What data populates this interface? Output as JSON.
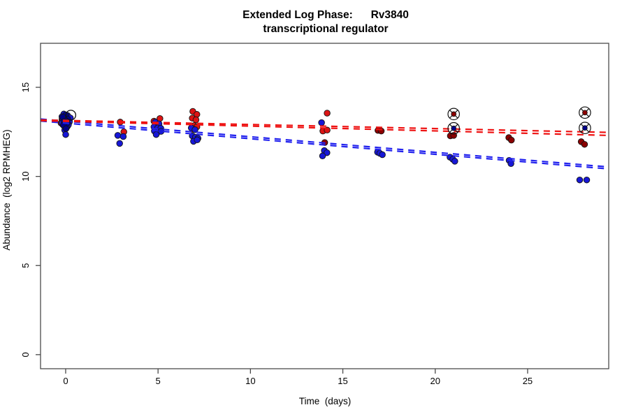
{
  "title": {
    "line1": "Extended Log Phase:      Rv3840",
    "line2": "transcriptional regulator"
  },
  "chart_data": {
    "type": "scatter",
    "title": "Extended Log Phase: Rv3840 transcriptional regulator",
    "xlabel": "Time  (days)",
    "ylabel": "Abundance  (log2 RPMHEG)",
    "xlim": [
      -1.36,
      29.39
    ],
    "ylim": [
      -0.79,
      17.47
    ],
    "x_ticks": [
      0,
      5,
      10,
      15,
      20,
      25
    ],
    "y_ticks": [
      0,
      5,
      10,
      15
    ],
    "grid": false,
    "legend": "none",
    "background": "#FFFFFF",
    "axis_color": "#4a4a4a",
    "text_color": "#000000",
    "point_series": [
      {
        "name": "red-points",
        "color": "#DC1414",
        "points": [
          [
            -0.2,
            13.2
          ],
          [
            0.2,
            13.1
          ],
          [
            -0.25,
            13.0
          ],
          [
            -0.15,
            12.9
          ],
          [
            0.1,
            12.82
          ],
          [
            2.95,
            13.05
          ],
          [
            3.15,
            12.5
          ],
          [
            5.1,
            13.25
          ],
          [
            4.78,
            13.1
          ],
          [
            6.88,
            13.65
          ],
          [
            7.1,
            13.48
          ],
          [
            6.85,
            13.27
          ],
          [
            7.05,
            13.18
          ],
          [
            6.95,
            12.85
          ],
          [
            7.1,
            12.78
          ],
          [
            6.88,
            12.65
          ],
          [
            14.15,
            13.55
          ],
          [
            13.92,
            12.55
          ],
          [
            14.15,
            12.6
          ]
        ]
      },
      {
        "name": "darkred-points",
        "color": "#8B0000",
        "points": [
          [
            14.02,
            11.9
          ],
          [
            16.9,
            12.58
          ],
          [
            17.08,
            12.55
          ],
          [
            20.82,
            12.28
          ],
          [
            21.0,
            12.3
          ],
          [
            23.98,
            12.18
          ],
          [
            24.12,
            12.04
          ],
          [
            27.9,
            11.95
          ],
          [
            28.08,
            11.8
          ]
        ]
      },
      {
        "name": "blue-points",
        "color": "#1717D6",
        "points": [
          [
            -0.1,
            13.5
          ],
          [
            0.1,
            13.42
          ],
          [
            -0.2,
            13.35
          ],
          [
            0.05,
            13.3
          ],
          [
            0.25,
            13.28
          ],
          [
            -0.15,
            13.2
          ],
          [
            0.1,
            13.15
          ],
          [
            -0.05,
            13.1
          ],
          [
            0.2,
            13.05
          ],
          [
            -0.2,
            13.0
          ],
          [
            0.0,
            12.95
          ],
          [
            0.15,
            12.9
          ],
          [
            -0.1,
            12.85
          ],
          [
            0.05,
            12.75
          ],
          [
            -0.05,
            12.6
          ],
          [
            0.0,
            12.35
          ],
          [
            2.82,
            12.3
          ],
          [
            3.12,
            12.24
          ],
          [
            2.92,
            11.85
          ],
          [
            4.85,
            13.05
          ],
          [
            5.05,
            12.95
          ],
          [
            4.78,
            12.78
          ],
          [
            4.98,
            12.72
          ],
          [
            5.15,
            12.7
          ],
          [
            4.8,
            12.55
          ],
          [
            5.0,
            12.5
          ],
          [
            5.16,
            12.53
          ],
          [
            4.9,
            12.35
          ],
          [
            6.8,
            12.72
          ],
          [
            7.0,
            12.62
          ],
          [
            6.85,
            12.28
          ],
          [
            7.02,
            12.2
          ],
          [
            7.16,
            12.14
          ],
          [
            6.92,
            11.97
          ],
          [
            7.12,
            12.05
          ],
          [
            13.85,
            13.02
          ],
          [
            14.0,
            11.45
          ],
          [
            14.14,
            11.33
          ],
          [
            13.9,
            11.15
          ],
          [
            16.88,
            11.36
          ],
          [
            17.0,
            11.3
          ],
          [
            17.14,
            11.22
          ],
          [
            20.8,
            11.08
          ],
          [
            20.95,
            10.96
          ],
          [
            21.06,
            10.85
          ],
          [
            24.0,
            10.9
          ],
          [
            24.1,
            10.72
          ],
          [
            27.82,
            9.8
          ],
          [
            28.2,
            9.8
          ]
        ]
      },
      {
        "name": "navy-points",
        "color": "#00008B",
        "points": [
          [
            0.0,
            13.45
          ],
          [
            -0.15,
            13.32
          ],
          [
            0.12,
            13.22
          ],
          [
            -0.08,
            13.08
          ],
          [
            0.08,
            12.98
          ],
          [
            -0.12,
            12.88
          ],
          [
            0.02,
            12.68
          ]
        ]
      }
    ],
    "outlier_markers": {
      "shape": "circle-x-dot",
      "stroke": "#111111",
      "items": [
        {
          "x": 21.0,
          "y": 13.5,
          "fill": "#8B0000"
        },
        {
          "x": 21.0,
          "y": 12.7,
          "fill": "#00008B"
        },
        {
          "x": 28.1,
          "y": 13.58,
          "fill": "#8B0000"
        },
        {
          "x": 28.1,
          "y": 12.72,
          "fill": "#00008B"
        }
      ]
    },
    "open_circle_marker": {
      "x": 0.28,
      "y": 13.44,
      "stroke": "#111111"
    },
    "trend_lines": [
      {
        "name": "blue-fit-a",
        "color": "#2222EE",
        "dash": [
          9,
          7
        ],
        "from": [
          -1.36,
          13.22
        ],
        "to": [
          29.39,
          10.53
        ]
      },
      {
        "name": "blue-fit-b",
        "color": "#2222EE",
        "dash": [
          9,
          7
        ],
        "from": [
          -1.36,
          13.11
        ],
        "to": [
          29.39,
          10.42
        ]
      },
      {
        "name": "red-fit-a",
        "color": "#EE1111",
        "dash": [
          9,
          7
        ],
        "from": [
          -1.36,
          13.17
        ],
        "to": [
          29.39,
          12.47
        ]
      },
      {
        "name": "red-fit-b",
        "color": "#EE1111",
        "dash": [
          9,
          7
        ],
        "from": [
          -1.36,
          13.13
        ],
        "to": [
          29.39,
          12.3
        ]
      }
    ]
  }
}
